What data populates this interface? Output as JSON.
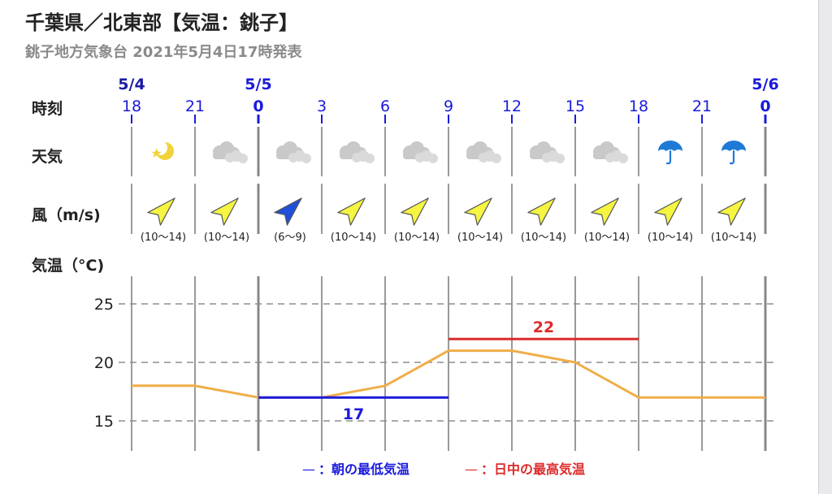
{
  "header": {
    "title": "千葉県／北東部【気温：銚子】",
    "subtitle": "銚子地方気象台 2021年5月4日17時発表"
  },
  "row_labels": {
    "time": "時刻",
    "weather": "天気",
    "wind": "風（m/s)",
    "temp": "気温（°C)"
  },
  "colors": {
    "accent_blue": "#1a1adc",
    "max_red": "#dc2b2b",
    "temp_line": "#f0ad48",
    "wind_yellow": "#f5f542",
    "wind_blue": "#1f4fd9",
    "umbrella": "#1e7ad6"
  },
  "timeline": [
    {
      "date": "5/4",
      "hour": "18",
      "day_boundary": false,
      "weather": "moon-icon",
      "wind_dir": "SW",
      "wind": "(10〜14)"
    },
    {
      "date": "",
      "hour": "21",
      "day_boundary": false,
      "weather": "cloud-icon",
      "wind_dir": "SW",
      "wind": "(10〜14)"
    },
    {
      "date": "5/5",
      "hour": "0",
      "day_boundary": true,
      "weather": "cloud-icon",
      "wind_dir": "SW",
      "wind": "(6〜9)",
      "wind_highlight": true
    },
    {
      "date": "",
      "hour": "3",
      "day_boundary": false,
      "weather": "cloud-icon",
      "wind_dir": "SW",
      "wind": "(10〜14)"
    },
    {
      "date": "",
      "hour": "6",
      "day_boundary": false,
      "weather": "cloud-icon",
      "wind_dir": "SW",
      "wind": "(10〜14)"
    },
    {
      "date": "",
      "hour": "9",
      "day_boundary": false,
      "weather": "cloud-icon",
      "wind_dir": "SW",
      "wind": "(10〜14)"
    },
    {
      "date": "",
      "hour": "12",
      "day_boundary": false,
      "weather": "cloud-icon",
      "wind_dir": "SW",
      "wind": "(10〜14)"
    },
    {
      "date": "",
      "hour": "15",
      "day_boundary": false,
      "weather": "cloud-icon",
      "wind_dir": "SW",
      "wind": "(10〜14)"
    },
    {
      "date": "",
      "hour": "18",
      "day_boundary": false,
      "weather": "umbrella-icon",
      "wind_dir": "SW",
      "wind": "(10〜14)"
    },
    {
      "date": "",
      "hour": "21",
      "day_boundary": false,
      "weather": "umbrella-icon",
      "wind_dir": "SW",
      "wind": "(10〜14)"
    },
    {
      "date": "5/6",
      "hour": "0",
      "day_boundary": true
    }
  ],
  "chart_data": {
    "type": "line",
    "x": [
      "18",
      "21",
      "0",
      "3",
      "6",
      "9",
      "12",
      "15",
      "18",
      "21",
      "0"
    ],
    "series": [
      {
        "values": [
          18,
          18,
          17,
          17,
          18,
          21,
          21,
          20,
          17,
          17,
          17
        ]
      }
    ],
    "yticks": [
      15,
      20,
      25
    ],
    "ylim": [
      12.5,
      27
    ],
    "grid": true,
    "min_temp": {
      "value": 17,
      "from_index": 2,
      "to_index": 5,
      "label": "17"
    },
    "max_temp": {
      "value": 22,
      "from_index": 5,
      "to_index": 8,
      "label": "22"
    },
    "legend": [
      {
        "symbol": "—",
        "text": "：朝の最低気温",
        "color": "#1a1adc"
      },
      {
        "symbol": "—",
        "text": "：日中の最高気温",
        "color": "#dc2b2b"
      }
    ],
    "legend_placement": "bottom"
  }
}
